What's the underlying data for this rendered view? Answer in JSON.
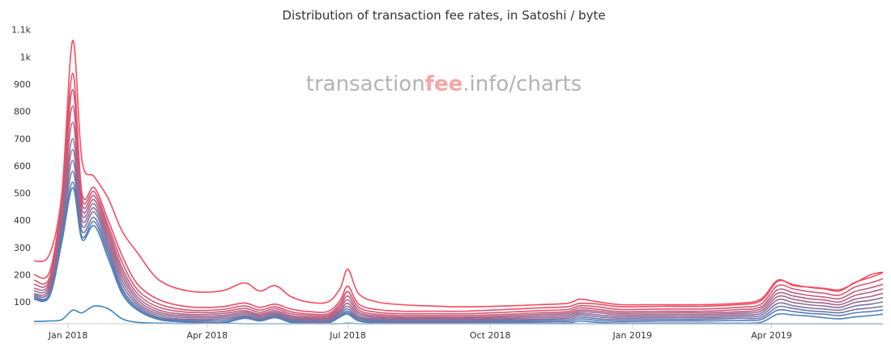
{
  "chart_data": {
    "type": "line",
    "title": "Distribution of transaction fee rates, in Satoshi / byte",
    "watermark": {
      "prefix": "transaction",
      "highlight": "fee",
      "suffix": ".info/charts",
      "text_color": "#b3b3b3",
      "highlight_color": "#f6a6a6"
    },
    "xlabel": "",
    "ylabel": "",
    "ylim": [
      20,
      1120
    ],
    "xlim": [
      "2017-12-10",
      "2019-06-12"
    ],
    "x_ticks": [
      {
        "date": "2018-01-01",
        "label": "Jan 2018"
      },
      {
        "date": "2018-04-01",
        "label": "Apr 2018"
      },
      {
        "date": "2018-07-01",
        "label": "Jul 2018"
      },
      {
        "date": "2018-10-01",
        "label": "Oct 2018"
      },
      {
        "date": "2019-01-01",
        "label": "Jan 2019"
      },
      {
        "date": "2019-04-01",
        "label": "Apr 2019"
      }
    ],
    "y_ticks": [
      {
        "value": 100,
        "label": "100"
      },
      {
        "value": 200,
        "label": "200"
      },
      {
        "value": 300,
        "label": "300"
      },
      {
        "value": 400,
        "label": "400"
      },
      {
        "value": 500,
        "label": "500"
      },
      {
        "value": 600,
        "label": "600"
      },
      {
        "value": 700,
        "label": "700"
      },
      {
        "value": 800,
        "label": "800"
      },
      {
        "value": 900,
        "label": "900"
      },
      {
        "value": 1000,
        "label": "1k"
      },
      {
        "value": 1100,
        "label": "1.1k"
      }
    ],
    "grid": false,
    "legend": "none",
    "colors": {
      "low": "#3a87c5",
      "high": "#f74b60",
      "axis": "#cccccc",
      "title": "#333333"
    },
    "x": [
      "2017-12-10",
      "2017-12-20",
      "2017-12-28",
      "2018-01-04",
      "2018-01-10",
      "2018-01-18",
      "2018-01-27",
      "2018-02-05",
      "2018-02-15",
      "2018-03-01",
      "2018-03-20",
      "2018-04-10",
      "2018-04-25",
      "2018-05-05",
      "2018-05-15",
      "2018-05-25",
      "2018-06-05",
      "2018-06-18",
      "2018-06-26",
      "2018-07-01",
      "2018-07-08",
      "2018-07-20",
      "2018-08-05",
      "2018-08-25",
      "2018-09-15",
      "2018-10-10",
      "2018-11-01",
      "2018-11-20",
      "2018-11-28",
      "2018-12-10",
      "2018-12-25",
      "2019-01-20",
      "2019-02-15",
      "2019-03-10",
      "2019-03-25",
      "2019-04-05",
      "2019-04-15",
      "2019-04-25",
      "2019-05-05",
      "2019-05-15",
      "2019-05-25",
      "2019-06-04",
      "2019-06-12"
    ],
    "series": [
      {
        "values": [
          28,
          30,
          35,
          70,
          60,
          85,
          75,
          38,
          25,
          22,
          20,
          22,
          20,
          20,
          20,
          20,
          20,
          20,
          20,
          22,
          20,
          20,
          20,
          20,
          20,
          20,
          20,
          20,
          20,
          20,
          20,
          20,
          20,
          20,
          20,
          20,
          20,
          20,
          20,
          20,
          20,
          20,
          20
        ]
      },
      {
        "values": [
          110,
          120,
          320,
          520,
          330,
          380,
          260,
          130,
          70,
          35,
          25,
          22,
          40,
          30,
          42,
          25,
          22,
          22,
          45,
          55,
          30,
          22,
          22,
          22,
          22,
          22,
          22,
          22,
          30,
          25,
          22,
          22,
          22,
          22,
          25,
          55,
          52,
          48,
          42,
          38,
          45,
          50,
          55
        ]
      },
      {
        "values": [
          115,
          125,
          340,
          540,
          340,
          395,
          275,
          140,
          75,
          38,
          28,
          26,
          42,
          33,
          45,
          28,
          25,
          25,
          48,
          60,
          33,
          26,
          25,
          25,
          25,
          26,
          27,
          28,
          38,
          32,
          28,
          30,
          30,
          32,
          35,
          70,
          65,
          58,
          55,
          50,
          60,
          65,
          70
        ]
      },
      {
        "values": [
          120,
          130,
          360,
          580,
          360,
          410,
          290,
          150,
          82,
          42,
          32,
          32,
          46,
          36,
          48,
          32,
          28,
          28,
          52,
          66,
          38,
          30,
          28,
          28,
          28,
          30,
          32,
          34,
          45,
          38,
          34,
          36,
          36,
          40,
          42,
          82,
          76,
          68,
          64,
          60,
          72,
          78,
          84
        ]
      },
      {
        "values": [
          125,
          140,
          380,
          620,
          380,
          430,
          305,
          165,
          90,
          48,
          36,
          38,
          50,
          40,
          52,
          36,
          32,
          32,
          58,
          74,
          42,
          34,
          32,
          32,
          32,
          34,
          36,
          40,
          52,
          45,
          40,
          42,
          42,
          46,
          50,
          95,
          86,
          78,
          74,
          70,
          85,
          92,
          100
        ]
      },
      {
        "values": [
          130,
          150,
          400,
          660,
          400,
          445,
          320,
          180,
          98,
          55,
          42,
          44,
          56,
          45,
          57,
          40,
          36,
          36,
          64,
          84,
          48,
          38,
          36,
          36,
          36,
          38,
          42,
          46,
          58,
          52,
          46,
          48,
          48,
          52,
          58,
          108,
          98,
          90,
          85,
          80,
          98,
          106,
          116
        ]
      },
      {
        "values": [
          140,
          160,
          420,
          700,
          420,
          460,
          335,
          195,
          108,
          62,
          48,
          50,
          62,
          50,
          62,
          45,
          40,
          40,
          70,
          95,
          55,
          43,
          40,
          40,
          40,
          43,
          48,
          52,
          64,
          60,
          52,
          54,
          54,
          58,
          66,
          120,
          110,
          100,
          96,
          90,
          110,
          120,
          132
        ]
      },
      {
        "values": [
          150,
          170,
          440,
          760,
          440,
          475,
          350,
          210,
          118,
          70,
          54,
          57,
          68,
          55,
          68,
          50,
          44,
          45,
          78,
          108,
          62,
          48,
          44,
          44,
          44,
          48,
          54,
          58,
          70,
          66,
          58,
          60,
          60,
          64,
          74,
          132,
          122,
          112,
          107,
          100,
          124,
          136,
          148
        ]
      },
      {
        "values": [
          165,
          180,
          460,
          820,
          460,
          490,
          365,
          225,
          130,
          80,
          62,
          64,
          76,
          62,
          75,
          57,
          50,
          50,
          86,
          122,
          70,
          54,
          50,
          50,
          50,
          54,
          60,
          64,
          78,
          73,
          64,
          66,
          66,
          72,
          82,
          145,
          134,
          124,
          118,
          112,
          138,
          152,
          165
        ]
      },
      {
        "values": [
          180,
          190,
          475,
          880,
          480,
          505,
          380,
          245,
          145,
          92,
          70,
          72,
          85,
          70,
          82,
          64,
          56,
          56,
          95,
          138,
          80,
          62,
          57,
          57,
          57,
          62,
          68,
          72,
          86,
          82,
          72,
          74,
          74,
          80,
          92,
          160,
          148,
          138,
          132,
          125,
          155,
          170,
          185
        ]
      },
      {
        "values": [
          200,
          210,
          480,
          940,
          500,
          520,
          400,
          270,
          165,
          108,
          82,
          82,
          96,
          80,
          92,
          74,
          65,
          65,
          106,
          158,
          92,
          72,
          66,
          66,
          66,
          72,
          78,
          82,
          95,
          92,
          82,
          84,
          84,
          90,
          104,
          176,
          164,
          154,
          148,
          140,
          172,
          190,
          208
        ]
      },
      {
        "values": [
          250,
          275,
          500,
          1060,
          620,
          560,
          480,
          360,
          280,
          180,
          140,
          140,
          170,
          140,
          160,
          120,
          100,
          100,
          150,
          220,
          130,
          100,
          90,
          85,
          82,
          85,
          90,
          95,
          110,
          100,
          90,
          90,
          90,
          95,
          110,
          180,
          160,
          155,
          150,
          145,
          170,
          200,
          210
        ]
      }
    ]
  }
}
